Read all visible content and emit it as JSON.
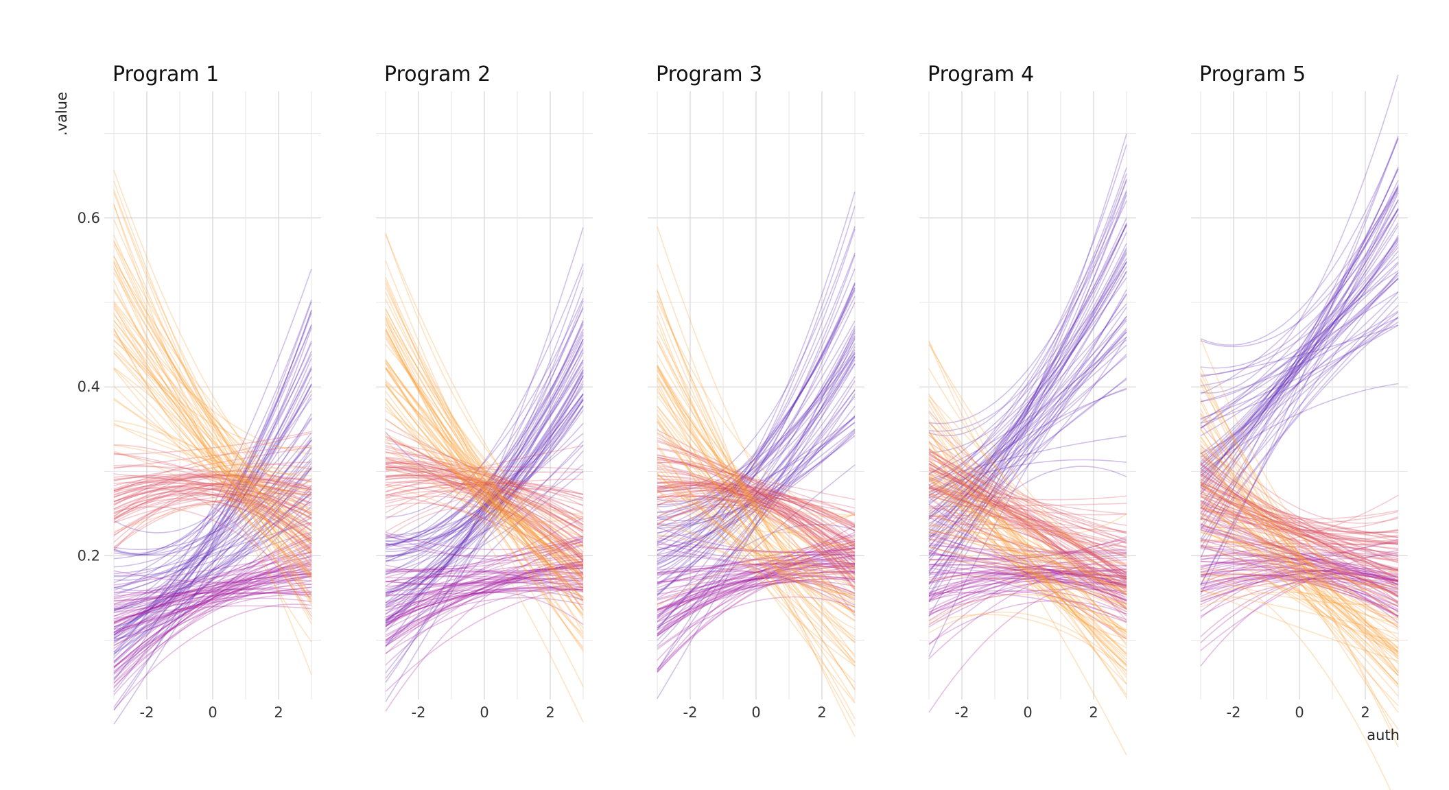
{
  "chart_data": {
    "type": "line",
    "xlabel": "auth",
    "ylabel": ".value",
    "xlim": [
      -3,
      3
    ],
    "ylim": [
      0.03,
      0.75
    ],
    "x_ticks": [
      -2,
      0,
      2
    ],
    "y_ticks": [
      0.2,
      0.4,
      0.6
    ],
    "grid": true,
    "colors": {
      "dark_purple": "#5a1fb4",
      "magenta": "#a0169f",
      "red": "#d9475a",
      "orange": "#fa9a2a"
    },
    "facets": [
      {
        "title": "Program 1",
        "series": [
          {
            "color": "dark_purple",
            "x": [
              -3,
              0,
              3
            ],
            "y": [
              0.12,
              0.21,
              0.37
            ]
          },
          {
            "color": "magenta",
            "x": [
              -3,
              0,
              3
            ],
            "y": [
              0.105,
              0.155,
              0.185
            ]
          },
          {
            "color": "red",
            "x": [
              -3,
              0,
              3
            ],
            "y": [
              0.27,
              0.285,
              0.25
            ]
          },
          {
            "color": "orange",
            "x": [
              -3,
              0,
              3
            ],
            "y": [
              0.5,
              0.33,
              0.2
            ]
          }
        ]
      },
      {
        "title": "Program 2",
        "series": [
          {
            "color": "dark_purple",
            "x": [
              -3,
              0,
              3
            ],
            "y": [
              0.15,
              0.25,
              0.42
            ]
          },
          {
            "color": "magenta",
            "x": [
              -3,
              0,
              3
            ],
            "y": [
              0.13,
              0.17,
              0.185
            ]
          },
          {
            "color": "red",
            "x": [
              -3,
              0,
              3
            ],
            "y": [
              0.29,
              0.28,
              0.22
            ]
          },
          {
            "color": "orange",
            "x": [
              -3,
              0,
              3
            ],
            "y": [
              0.45,
              0.28,
              0.16
            ]
          }
        ]
      },
      {
        "title": "Program 3",
        "series": [
          {
            "color": "dark_purple",
            "x": [
              -3,
              0,
              3
            ],
            "y": [
              0.18,
              0.28,
              0.44
            ]
          },
          {
            "color": "magenta",
            "x": [
              -3,
              0,
              3
            ],
            "y": [
              0.14,
              0.175,
              0.18
            ]
          },
          {
            "color": "red",
            "x": [
              -3,
              0,
              3
            ],
            "y": [
              0.285,
              0.27,
              0.2
            ]
          },
          {
            "color": "orange",
            "x": [
              -3,
              0,
              3
            ],
            "y": [
              0.38,
              0.23,
              0.13
            ]
          }
        ]
      },
      {
        "title": "Program 4",
        "series": [
          {
            "color": "dark_purple",
            "x": [
              -3,
              0,
              3
            ],
            "y": [
              0.25,
              0.36,
              0.52
            ]
          },
          {
            "color": "magenta",
            "x": [
              -3,
              0,
              3
            ],
            "y": [
              0.165,
              0.18,
              0.175
            ]
          },
          {
            "color": "red",
            "x": [
              -3,
              0,
              3
            ],
            "y": [
              0.29,
              0.24,
              0.18
            ]
          },
          {
            "color": "orange",
            "x": [
              -3,
              0,
              3
            ],
            "y": [
              0.32,
              0.2,
              0.1
            ]
          }
        ]
      },
      {
        "title": "Program 5",
        "series": [
          {
            "color": "dark_purple",
            "x": [
              -3,
              0,
              3
            ],
            "y": [
              0.3,
              0.42,
              0.57
            ]
          },
          {
            "color": "magenta",
            "x": [
              -3,
              0,
              3
            ],
            "y": [
              0.19,
              0.19,
              0.165
            ]
          },
          {
            "color": "red",
            "x": [
              -3,
              0,
              3
            ],
            "y": [
              0.27,
              0.22,
              0.18
            ]
          },
          {
            "color": "orange",
            "x": [
              -3,
              0,
              3
            ],
            "y": [
              0.29,
              0.18,
              0.085
            ]
          }
        ]
      }
    ]
  }
}
